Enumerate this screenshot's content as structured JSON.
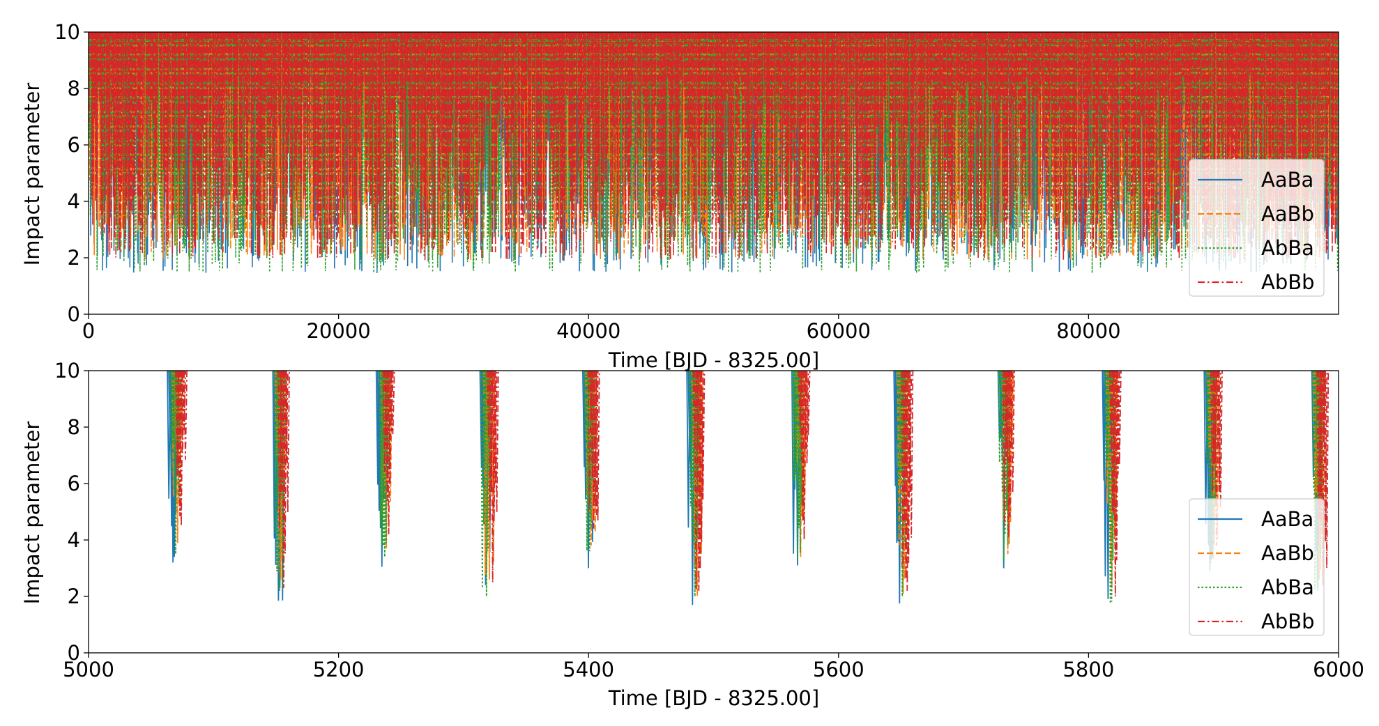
{
  "chart_data": [
    {
      "type": "line",
      "id": "top",
      "xlabel": "Time [BJD - 8325.00]",
      "ylabel": "Impact parameter",
      "xlim": [
        0,
        100000
      ],
      "ylim": [
        0,
        10
      ],
      "xticks": [
        0,
        20000,
        40000,
        60000,
        80000
      ],
      "yticks": [
        0,
        2,
        4,
        6,
        8,
        10
      ],
      "legend_position": "lower-right",
      "grid": false,
      "x_period": 83.5,
      "series": [
        {
          "name": "AaBa",
          "color": "#1f77b4",
          "dash": "solid",
          "transit_min_range": [
            1.45,
            4.6
          ],
          "rendering": "dense minima, approx. 1200 transits over span"
        },
        {
          "name": "AaBb",
          "color": "#ff7f0e",
          "dash": "dashed",
          "transit_min_range": [
            1.9,
            4.2
          ],
          "rendering": "dense minima, approx. 1200 transits over span"
        },
        {
          "name": "AbBa",
          "color": "#2ca02c",
          "dash": "dotted",
          "transit_min_range": [
            1.45,
            4.5
          ],
          "rendering": "dense minima, approx. 1200 transits over span"
        },
        {
          "name": "AbBb",
          "color": "#d62728",
          "dash": "dashdot",
          "transit_min_range": [
            1.9,
            4.4
          ],
          "rendering": "dense minima, approx. 1200 transits over span"
        }
      ]
    },
    {
      "type": "line",
      "id": "bottom",
      "xlabel": "Time [BJD - 8325.00]",
      "ylabel": "Impact parameter",
      "xlim": [
        5000,
        6000
      ],
      "ylim": [
        0,
        10
      ],
      "xticks": [
        5000,
        5200,
        5400,
        5600,
        5800,
        6000
      ],
      "yticks": [
        0,
        2,
        4,
        6,
        8,
        10
      ],
      "legend_position": "lower-right",
      "grid": false,
      "transit_centers": [
        5071,
        5154,
        5238,
        5320,
        5402,
        5486,
        5569,
        5652,
        5734,
        5819,
        5900,
        5985
      ],
      "series": [
        {
          "name": "AaBa",
          "color": "#1f77b4",
          "dash": "solid",
          "minima": [
            3.2,
            1.85,
            3.05,
            2.4,
            3.0,
            1.7,
            3.1,
            1.75,
            3.0,
            1.9,
            2.9,
            2.3
          ]
        },
        {
          "name": "AaBb",
          "color": "#ff7f0e",
          "dash": "dashed",
          "minima": [
            3.9,
            2.6,
            3.7,
            2.6,
            3.8,
            2.0,
            3.4,
            2.1,
            3.5,
            2.3,
            3.3,
            2.6
          ]
        },
        {
          "name": "AbBa",
          "color": "#2ca02c",
          "dash": "dotted",
          "minima": [
            3.5,
            2.2,
            3.4,
            2.0,
            3.6,
            2.0,
            3.3,
            2.0,
            3.2,
            1.75,
            3.2,
            2.2
          ]
        },
        {
          "name": "AbBb",
          "color": "#d62728",
          "dash": "dashdot",
          "minima": [
            4.5,
            2.3,
            4.2,
            2.5,
            4.4,
            2.2,
            4.0,
            2.2,
            4.1,
            2.0,
            3.8,
            2.4
          ]
        }
      ]
    }
  ]
}
